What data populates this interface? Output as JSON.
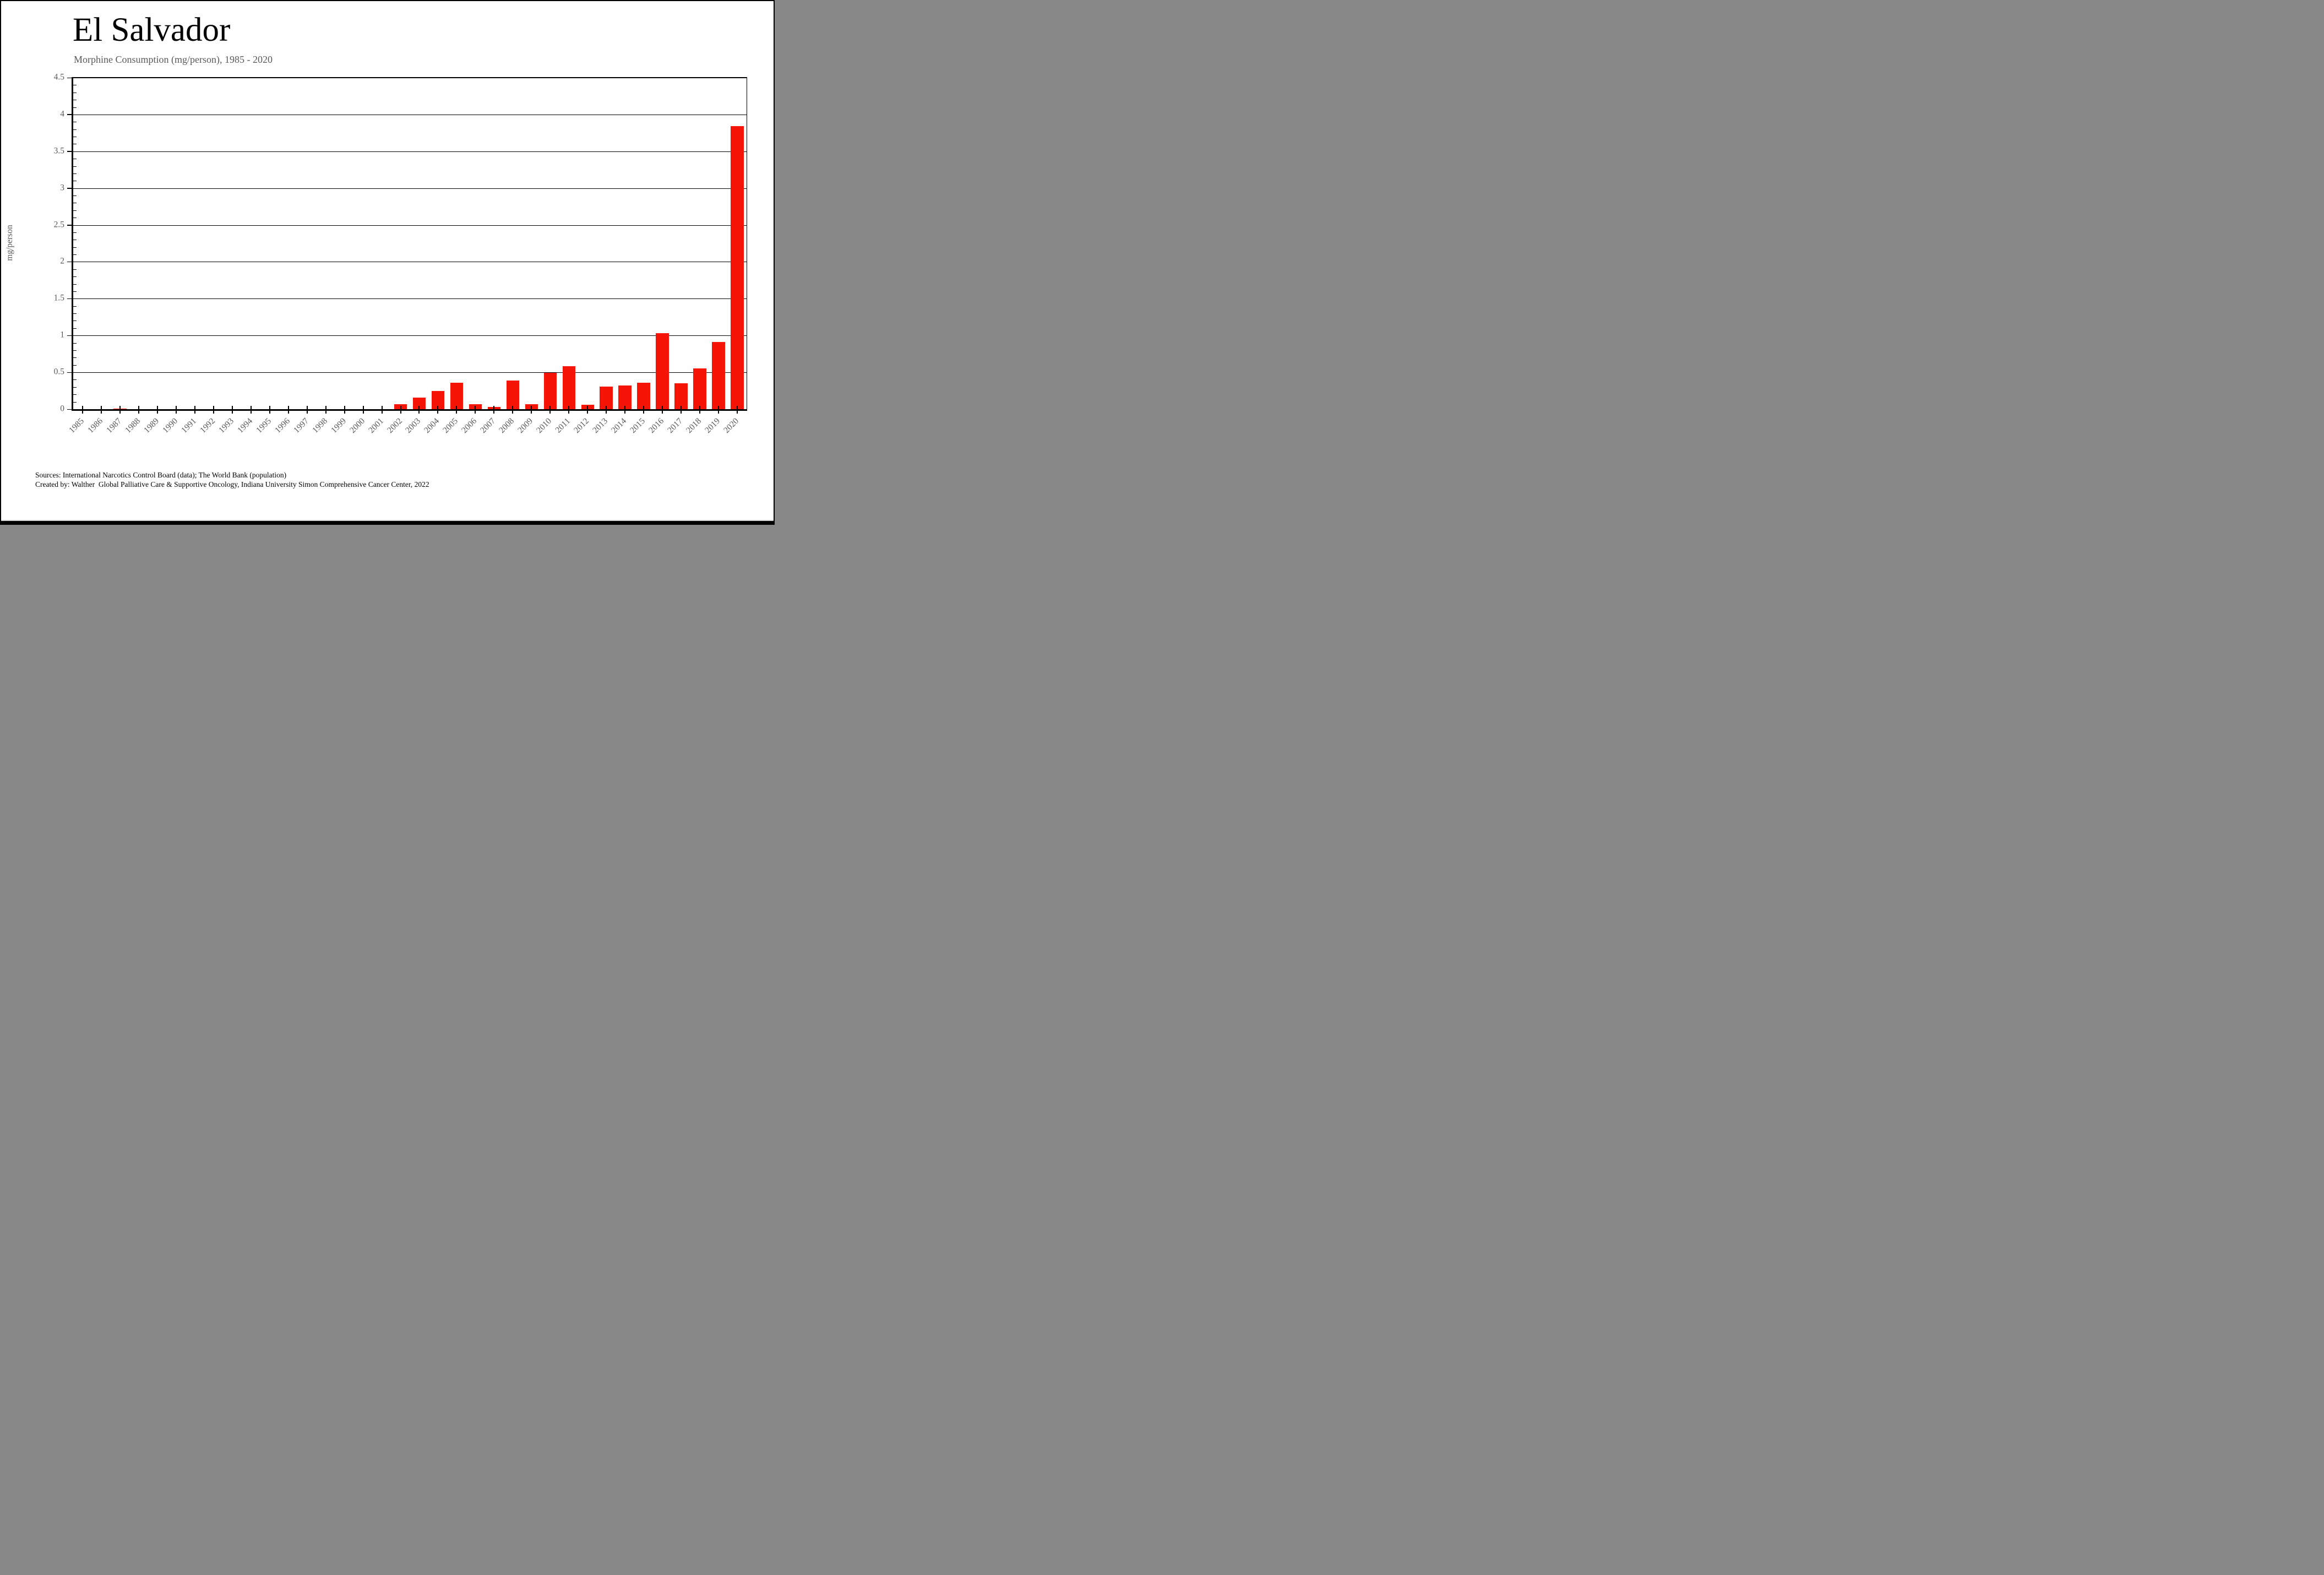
{
  "title": "El Salvador",
  "subtitle": "Morphine Consumption (mg/person), 1985 - 2020",
  "y_axis_title": "mg/person",
  "footer": {
    "sources_line": "Sources: International Narcotics Control Board (data); The World Bank (population)",
    "created_by_line": "Created by: Walther  Global Palliative Care & Supportive Oncology, Indiana University Simon Comprehensive Cancer Center, 2022"
  },
  "colors": {
    "bar": "#f51405",
    "axis_line": "#000000",
    "gridline": "#000000",
    "label_gray": "#595959",
    "title_black": "#000000",
    "bottom_bar": "#000000",
    "bottom_grayline": "#d8d8d8"
  },
  "chart_data": {
    "type": "bar",
    "title": "El Salvador",
    "subtitle": "Morphine Consumption (mg/person), 1985 - 2020",
    "xlabel": "",
    "ylabel": "mg/person",
    "categories": [
      "1985",
      "1986",
      "1987",
      "1988",
      "1989",
      "1990",
      "1991",
      "1992",
      "1993",
      "1994",
      "1995",
      "1996",
      "1997",
      "1998",
      "1999",
      "2000",
      "2001",
      "2002",
      "2003",
      "2004",
      "2005",
      "2006",
      "2007",
      "2008",
      "2009",
      "2010",
      "2011",
      "2012",
      "2013",
      "2014",
      "2015",
      "2016",
      "2017",
      "2018",
      "2019",
      "2020"
    ],
    "values": [
      0,
      0,
      0.01,
      0,
      0,
      0,
      0,
      0,
      0,
      0,
      0,
      0,
      0,
      0,
      0,
      0,
      0,
      0.07,
      0.16,
      0.25,
      0.36,
      0.07,
      0.03,
      0.39,
      0.07,
      0.49,
      0.58,
      0.06,
      0.31,
      0.32,
      0.36,
      1.03,
      0.35,
      0.55,
      0.91,
      3.84
    ],
    "ylim": [
      0,
      4.5
    ],
    "y_major_step": 0.5,
    "y_minor_step": 0.1,
    "y_tick_labels": [
      "0",
      "0.5",
      "1",
      "1.5",
      "2",
      "2.5",
      "3",
      "3.5",
      "4",
      "4.5"
    ],
    "grid": "horizontal-major-gridlines",
    "legend_position": "none",
    "bar_color": "#f51405",
    "x_tick_style": "cross-at-category-centers",
    "x_label_rotation_deg": 45
  }
}
